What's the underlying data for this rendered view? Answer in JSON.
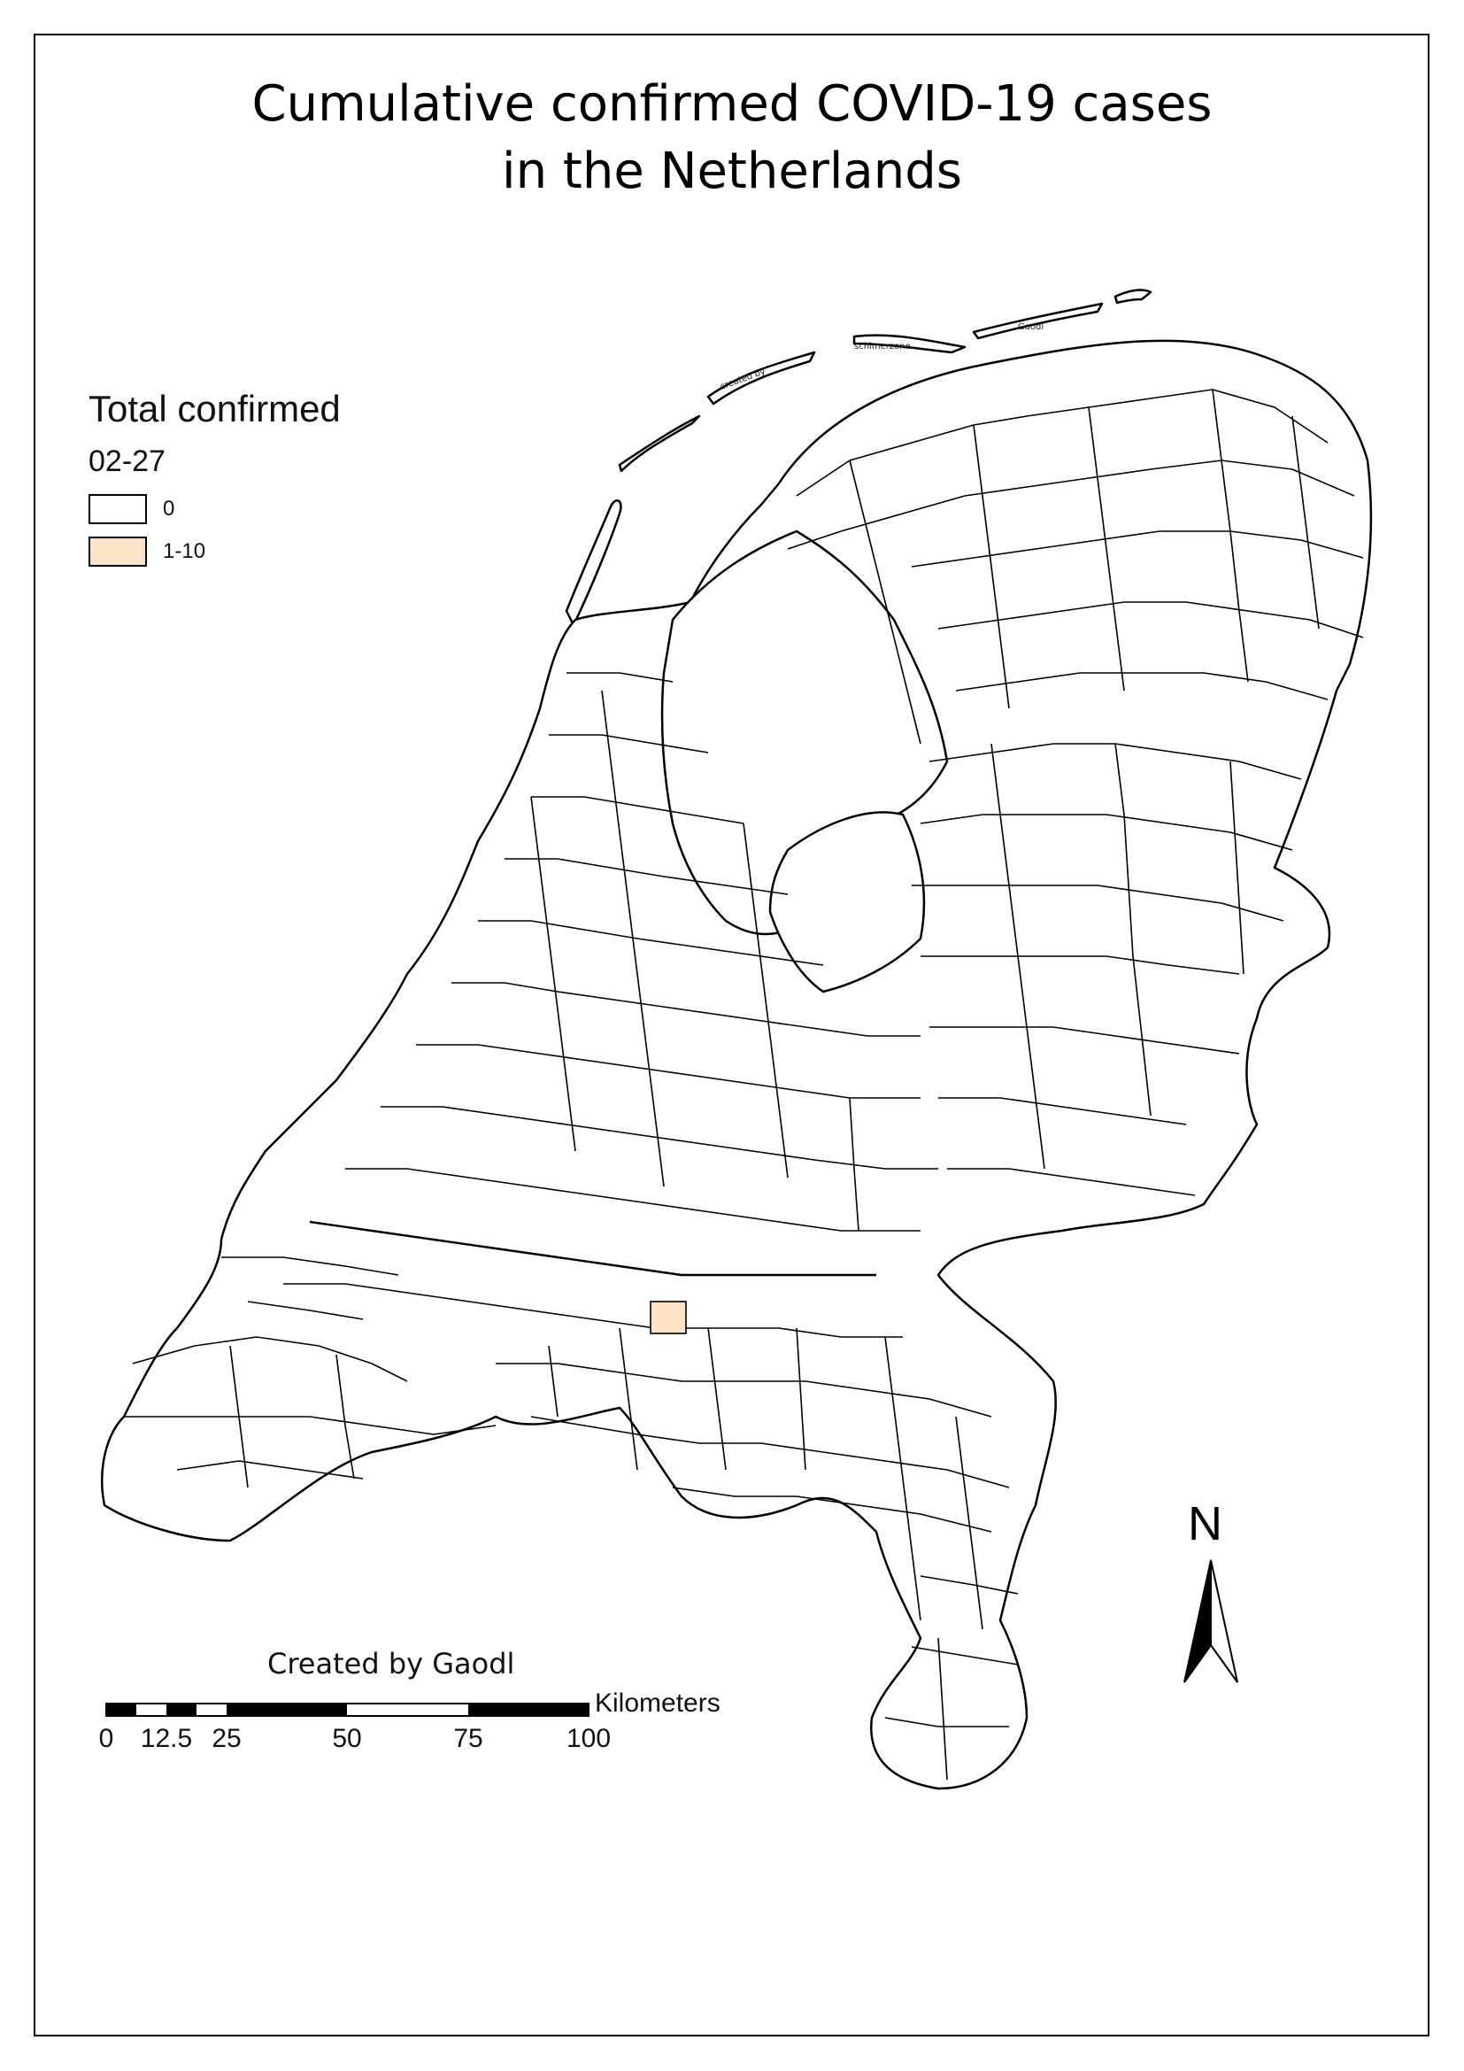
{
  "title_line1": "Cumulative confirmed COVID-19 cases",
  "title_line2": "in the Netherlands",
  "legend": {
    "title": "Total confirmed",
    "date": "02-27",
    "items": [
      {
        "label": "0",
        "color": "#ffffff"
      },
      {
        "label": "1-10",
        "color": "#fde3c6"
      }
    ]
  },
  "credit": "Created by Gaodl",
  "island_labels": [
    "created by",
    "schimerzone",
    "Gaodl"
  ],
  "scale_bar": {
    "unit": "Kilometers",
    "ticks": [
      "0",
      "12.5",
      "25",
      "50",
      "75",
      "100"
    ]
  },
  "north_arrow": {
    "label": "N",
    "icon": "north-arrow-icon"
  },
  "colors": {
    "outline": "#000000",
    "highlight": "#fde3c6"
  }
}
